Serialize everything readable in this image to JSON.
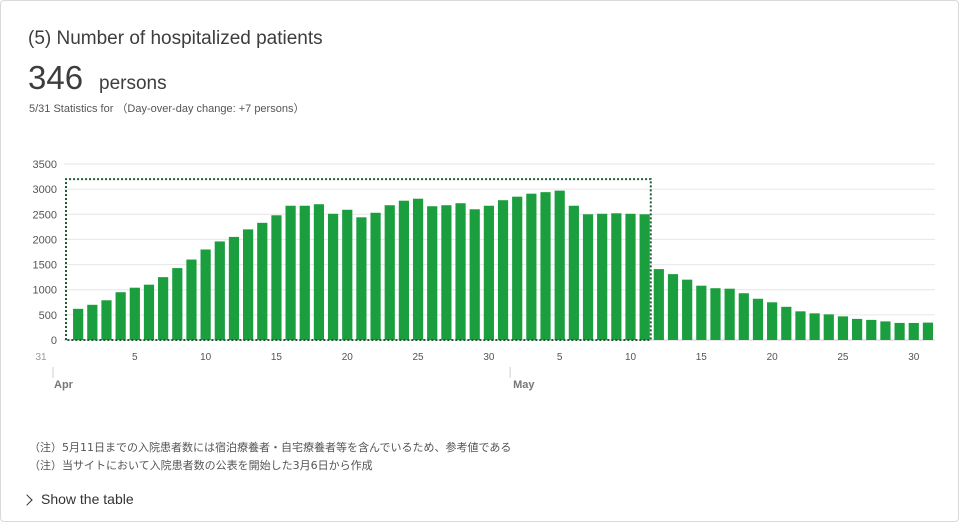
{
  "header": {
    "title": "(5) Number of hospitalized patients",
    "value": "346",
    "unit": "persons",
    "stats_prefix": "5/31 Statistics for",
    "stats_change": "（Day-over-day change: +7 persons）"
  },
  "notes": [
    "（注）5月11日までの入院患者数には宿泊療養者・自宅療養者等を含んでいるため、参考値である",
    "（注）当サイトにおいて入院患者数の公表を開始した3月6日から作成"
  ],
  "toggle_label": "Show the table",
  "colors": {
    "bar": "#1b9e3e",
    "dotted": "#1d5e37",
    "grid": "#e6e6e6",
    "text": "#3d3d3d"
  },
  "chart_data": {
    "type": "bar",
    "x_start": "2020-03-31",
    "x_end": "2020-05-31",
    "ylim": [
      0,
      3500
    ],
    "yticks": [
      0,
      500,
      1000,
      1500,
      2000,
      2500,
      3000,
      3500
    ],
    "xtick_labels": [
      "31",
      "5",
      "10",
      "15",
      "20",
      "25",
      "30",
      "5",
      "10",
      "15",
      "20",
      "25",
      "30"
    ],
    "month_labels": [
      "Apr",
      "May"
    ],
    "reference_period": {
      "start": "2020-03-31",
      "end": "2020-05-11",
      "level": 3200
    },
    "series": [
      {
        "x": [
          "2020-04-01",
          "2020-04-02",
          "2020-04-03",
          "2020-04-04",
          "2020-04-05",
          "2020-04-06",
          "2020-04-07",
          "2020-04-08",
          "2020-04-09",
          "2020-04-10",
          "2020-04-11",
          "2020-04-12",
          "2020-04-13",
          "2020-04-14",
          "2020-04-15",
          "2020-04-16",
          "2020-04-17",
          "2020-04-18",
          "2020-04-19",
          "2020-04-20",
          "2020-04-21",
          "2020-04-22",
          "2020-04-23",
          "2020-04-24",
          "2020-04-25",
          "2020-04-26",
          "2020-04-27",
          "2020-04-28",
          "2020-04-29",
          "2020-04-30",
          "2020-05-01",
          "2020-05-02",
          "2020-05-03",
          "2020-05-04",
          "2020-05-05",
          "2020-05-06",
          "2020-05-07",
          "2020-05-08",
          "2020-05-09",
          "2020-05-10",
          "2020-05-11",
          "2020-05-12",
          "2020-05-13",
          "2020-05-14",
          "2020-05-15",
          "2020-05-16",
          "2020-05-17",
          "2020-05-18",
          "2020-05-19",
          "2020-05-20",
          "2020-05-21",
          "2020-05-22",
          "2020-05-23",
          "2020-05-24",
          "2020-05-25",
          "2020-05-26",
          "2020-05-27",
          "2020-05-28",
          "2020-05-29",
          "2020-05-30",
          "2020-05-31"
        ],
        "values": [
          620,
          700,
          790,
          950,
          1040,
          1100,
          1250,
          1430,
          1600,
          1800,
          1960,
          2050,
          2200,
          2330,
          2480,
          2670,
          2670,
          2700,
          2510,
          2590,
          2440,
          2530,
          2680,
          2770,
          2810,
          2660,
          2680,
          2720,
          2600,
          2670,
          2780,
          2850,
          2910,
          2940,
          2970,
          2670,
          2500,
          2510,
          2520,
          2510,
          2500,
          1410,
          1310,
          1200,
          1080,
          1030,
          1020,
          930,
          820,
          750,
          660,
          570,
          530,
          510,
          470,
          420,
          400,
          370,
          340,
          339,
          346
        ]
      }
    ]
  }
}
